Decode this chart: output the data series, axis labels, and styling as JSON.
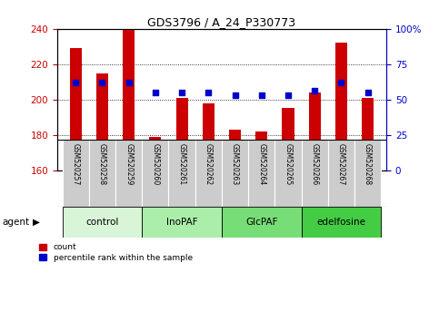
{
  "title": "GDS3796 / A_24_P330773",
  "samples": [
    "GSM520257",
    "GSM520258",
    "GSM520259",
    "GSM520260",
    "GSM520261",
    "GSM520262",
    "GSM520263",
    "GSM520264",
    "GSM520265",
    "GSM520266",
    "GSM520267",
    "GSM520268"
  ],
  "bar_values": [
    229,
    215,
    240,
    179,
    201,
    198,
    183,
    182,
    195,
    204,
    232,
    201
  ],
  "dot_values": [
    62,
    62,
    62,
    55,
    55,
    55,
    53,
    53,
    53,
    56,
    62,
    55
  ],
  "bar_color": "#cc0000",
  "dot_color": "#0000cc",
  "ylim_left": [
    160,
    240
  ],
  "ylim_right": [
    0,
    100
  ],
  "yticks_left": [
    160,
    180,
    200,
    220,
    240
  ],
  "yticks_right": [
    0,
    25,
    50,
    75,
    100
  ],
  "ytick_labels_right": [
    "0",
    "25",
    "50",
    "75",
    "100%"
  ],
  "groups": [
    {
      "label": "control",
      "start": 0,
      "end": 3,
      "color": "#d8f5d8"
    },
    {
      "label": "InoPAF",
      "start": 3,
      "end": 6,
      "color": "#aaeeaa"
    },
    {
      "label": "GlcPAF",
      "start": 6,
      "end": 9,
      "color": "#77dd77"
    },
    {
      "label": "edelfosine",
      "start": 9,
      "end": 12,
      "color": "#44cc44"
    }
  ],
  "agent_label": "agent",
  "legend_count_label": "count",
  "legend_pct_label": "percentile rank within the sample",
  "bar_width": 0.45,
  "background_color": "#ffffff",
  "tick_area_color": "#cccccc",
  "grid_color": "#000000",
  "spine_color": "#000000"
}
